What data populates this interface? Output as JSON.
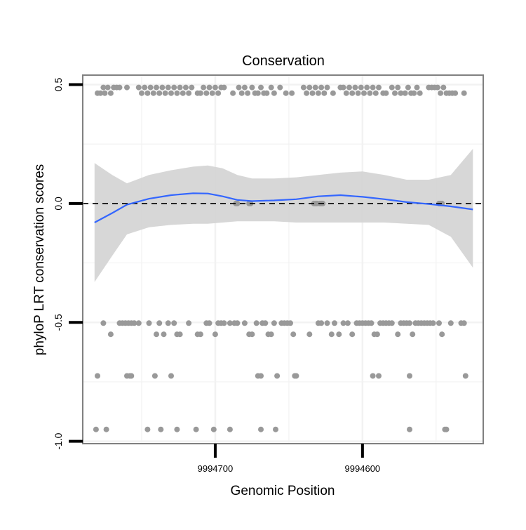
{
  "chart_data": {
    "type": "scatter",
    "title": "Conservation",
    "xlabel": "Genomic Position",
    "ylabel": "phyloP LRT conservation scores",
    "x_reversed": true,
    "xlim": [
      9994790,
      9994518
    ],
    "ylim": [
      -1.01,
      0.54
    ],
    "x_ticks": [
      {
        "value": 9994700,
        "label": "9994700"
      },
      {
        "value": 9994600,
        "label": "9994600"
      }
    ],
    "y_ticks": [
      {
        "value": 0.5,
        "label": "0.5"
      },
      {
        "value": 0.0,
        "label": "0.0"
      },
      {
        "value": -0.5,
        "label": "-0.5"
      },
      {
        "value": -1.0,
        "label": "-1.0"
      }
    ],
    "reference_line": {
      "y": 0,
      "style": "dashed"
    },
    "grid": true,
    "colors": {
      "points": "#999999",
      "smooth_line": "#3366ff",
      "band": "#d3d3d3",
      "border": "#808080",
      "grid": "#f2f2f2",
      "ref_line": "#000000"
    },
    "points": [
      {
        "x": 9994780,
        "y": 0.464
      },
      {
        "x": 9994778,
        "y": 0.464
      },
      {
        "x": 9994776,
        "y": 0.488
      },
      {
        "x": 9994775,
        "y": 0.464
      },
      {
        "x": 9994773,
        "y": 0.488
      },
      {
        "x": 9994771,
        "y": 0.464
      },
      {
        "x": 9994769,
        "y": 0.488
      },
      {
        "x": 9994767,
        "y": 0.488
      },
      {
        "x": 9994765,
        "y": 0.488
      },
      {
        "x": 9994760,
        "y": 0.488
      },
      {
        "x": 9994752,
        "y": 0.488
      },
      {
        "x": 9994750,
        "y": 0.464
      },
      {
        "x": 9994748,
        "y": 0.488
      },
      {
        "x": 9994746,
        "y": 0.464
      },
      {
        "x": 9994744,
        "y": 0.488
      },
      {
        "x": 9994742,
        "y": 0.464
      },
      {
        "x": 9994740,
        "y": 0.488
      },
      {
        "x": 9994738,
        "y": 0.464
      },
      {
        "x": 9994736,
        "y": 0.488
      },
      {
        "x": 9994734,
        "y": 0.464
      },
      {
        "x": 9994732,
        "y": 0.488
      },
      {
        "x": 9994730,
        "y": 0.464
      },
      {
        "x": 9994728,
        "y": 0.488
      },
      {
        "x": 9994726,
        "y": 0.464
      },
      {
        "x": 9994724,
        "y": 0.488
      },
      {
        "x": 9994722,
        "y": 0.464
      },
      {
        "x": 9994720,
        "y": 0.488
      },
      {
        "x": 9994718,
        "y": 0.464
      },
      {
        "x": 9994716,
        "y": 0.488
      },
      {
        "x": 9994712,
        "y": 0.464
      },
      {
        "x": 9994710,
        "y": 0.464
      },
      {
        "x": 9994708,
        "y": 0.488
      },
      {
        "x": 9994706,
        "y": 0.464
      },
      {
        "x": 9994704,
        "y": 0.488
      },
      {
        "x": 9994702,
        "y": 0.464
      },
      {
        "x": 9994700,
        "y": 0.488
      },
      {
        "x": 9994698,
        "y": 0.464
      },
      {
        "x": 9994696,
        "y": 0.488
      },
      {
        "x": 9994694,
        "y": 0.488
      },
      {
        "x": 9994688,
        "y": 0.464
      },
      {
        "x": 9994684,
        "y": 0.488
      },
      {
        "x": 9994682,
        "y": 0.464
      },
      {
        "x": 9994680,
        "y": 0.488
      },
      {
        "x": 9994678,
        "y": 0.464
      },
      {
        "x": 9994675,
        "y": 0.488
      },
      {
        "x": 9994673,
        "y": 0.464
      },
      {
        "x": 9994671,
        "y": 0.464
      },
      {
        "x": 9994669,
        "y": 0.488
      },
      {
        "x": 9994667,
        "y": 0.464
      },
      {
        "x": 9994665,
        "y": 0.464
      },
      {
        "x": 9994662,
        "y": 0.488
      },
      {
        "x": 9994660,
        "y": 0.464
      },
      {
        "x": 9994656,
        "y": 0.488
      },
      {
        "x": 9994652,
        "y": 0.464
      },
      {
        "x": 9994648,
        "y": 0.464
      },
      {
        "x": 9994640,
        "y": 0.488
      },
      {
        "x": 9994638,
        "y": 0.464
      },
      {
        "x": 9994636,
        "y": 0.488
      },
      {
        "x": 9994634,
        "y": 0.464
      },
      {
        "x": 9994632,
        "y": 0.488
      },
      {
        "x": 9994630,
        "y": 0.464
      },
      {
        "x": 9994628,
        "y": 0.488
      },
      {
        "x": 9994626,
        "y": 0.464
      },
      {
        "x": 9994624,
        "y": 0.488
      },
      {
        "x": 9994620,
        "y": 0.464
      },
      {
        "x": 9994615,
        "y": 0.488
      },
      {
        "x": 9994613,
        "y": 0.488
      },
      {
        "x": 9994611,
        "y": 0.464
      },
      {
        "x": 9994609,
        "y": 0.488
      },
      {
        "x": 9994607,
        "y": 0.464
      },
      {
        "x": 9994605,
        "y": 0.488
      },
      {
        "x": 9994603,
        "y": 0.464
      },
      {
        "x": 9994601,
        "y": 0.488
      },
      {
        "x": 9994599,
        "y": 0.464
      },
      {
        "x": 9994597,
        "y": 0.488
      },
      {
        "x": 9994595,
        "y": 0.464
      },
      {
        "x": 9994593,
        "y": 0.488
      },
      {
        "x": 9994591,
        "y": 0.464
      },
      {
        "x": 9994589,
        "y": 0.488
      },
      {
        "x": 9994586,
        "y": 0.464
      },
      {
        "x": 9994584,
        "y": 0.464
      },
      {
        "x": 9994580,
        "y": 0.488
      },
      {
        "x": 9994578,
        "y": 0.464
      },
      {
        "x": 9994576,
        "y": 0.488
      },
      {
        "x": 9994574,
        "y": 0.464
      },
      {
        "x": 9994571,
        "y": 0.464
      },
      {
        "x": 9994569,
        "y": 0.488
      },
      {
        "x": 9994567,
        "y": 0.464
      },
      {
        "x": 9994565,
        "y": 0.464
      },
      {
        "x": 9994563,
        "y": 0.488
      },
      {
        "x": 9994561,
        "y": 0.464
      },
      {
        "x": 9994555,
        "y": 0.488
      },
      {
        "x": 9994553,
        "y": 0.488
      },
      {
        "x": 9994551,
        "y": 0.488
      },
      {
        "x": 9994549,
        "y": 0.488
      },
      {
        "x": 9994547,
        "y": 0.464
      },
      {
        "x": 9994545,
        "y": 0.488
      },
      {
        "x": 9994543,
        "y": 0.464
      },
      {
        "x": 9994541,
        "y": 0.464
      },
      {
        "x": 9994539,
        "y": 0.464
      },
      {
        "x": 9994537,
        "y": 0.464
      },
      {
        "x": 9994531,
        "y": 0.464
      },
      {
        "x": 9994686,
        "y": 0.0
      },
      {
        "x": 9994685,
        "y": 0.0
      },
      {
        "x": 9994677,
        "y": 0.0
      },
      {
        "x": 9994676,
        "y": 0.0
      },
      {
        "x": 9994633,
        "y": 0.0
      },
      {
        "x": 9994632,
        "y": 0.0
      },
      {
        "x": 9994631,
        "y": 0.0
      },
      {
        "x": 9994629,
        "y": 0.0
      },
      {
        "x": 9994628,
        "y": 0.0
      },
      {
        "x": 9994627,
        "y": 0.0
      },
      {
        "x": 9994548,
        "y": 0.0
      },
      {
        "x": 9994547,
        "y": 0.0
      },
      {
        "x": 9994546,
        "y": 0.0
      },
      {
        "x": 9994776,
        "y": -0.503
      },
      {
        "x": 9994765,
        "y": -0.503
      },
      {
        "x": 9994763,
        "y": -0.503
      },
      {
        "x": 9994761,
        "y": -0.503
      },
      {
        "x": 9994759,
        "y": -0.503
      },
      {
        "x": 9994757,
        "y": -0.503
      },
      {
        "x": 9994755,
        "y": -0.503
      },
      {
        "x": 9994752,
        "y": -0.503
      },
      {
        "x": 9994771,
        "y": -0.55
      },
      {
        "x": 9994745,
        "y": -0.503
      },
      {
        "x": 9994740,
        "y": -0.55
      },
      {
        "x": 9994738,
        "y": -0.503
      },
      {
        "x": 9994735,
        "y": -0.55
      },
      {
        "x": 9994732,
        "y": -0.503
      },
      {
        "x": 9994728,
        "y": -0.503
      },
      {
        "x": 9994726,
        "y": -0.55
      },
      {
        "x": 9994724,
        "y": -0.55
      },
      {
        "x": 9994718,
        "y": -0.503
      },
      {
        "x": 9994712,
        "y": -0.55
      },
      {
        "x": 9994710,
        "y": -0.55
      },
      {
        "x": 9994706,
        "y": -0.503
      },
      {
        "x": 9994704,
        "y": -0.503
      },
      {
        "x": 9994700,
        "y": -0.55
      },
      {
        "x": 9994698,
        "y": -0.503
      },
      {
        "x": 9994696,
        "y": -0.503
      },
      {
        "x": 9994694,
        "y": -0.503
      },
      {
        "x": 9994690,
        "y": -0.503
      },
      {
        "x": 9994687,
        "y": -0.503
      },
      {
        "x": 9994685,
        "y": -0.503
      },
      {
        "x": 9994680,
        "y": -0.503
      },
      {
        "x": 9994677,
        "y": -0.55
      },
      {
        "x": 9994675,
        "y": -0.55
      },
      {
        "x": 9994672,
        "y": -0.503
      },
      {
        "x": 9994668,
        "y": -0.503
      },
      {
        "x": 9994666,
        "y": -0.503
      },
      {
        "x": 9994664,
        "y": -0.55
      },
      {
        "x": 9994662,
        "y": -0.55
      },
      {
        "x": 9994660,
        "y": -0.503
      },
      {
        "x": 9994655,
        "y": -0.503
      },
      {
        "x": 9994653,
        "y": -0.503
      },
      {
        "x": 9994651,
        "y": -0.503
      },
      {
        "x": 9994649,
        "y": -0.503
      },
      {
        "x": 9994647,
        "y": -0.55
      },
      {
        "x": 9994636,
        "y": -0.55
      },
      {
        "x": 9994630,
        "y": -0.503
      },
      {
        "x": 9994628,
        "y": -0.503
      },
      {
        "x": 9994624,
        "y": -0.503
      },
      {
        "x": 9994621,
        "y": -0.55
      },
      {
        "x": 9994619,
        "y": -0.503
      },
      {
        "x": 9994616,
        "y": -0.55
      },
      {
        "x": 9994613,
        "y": -0.503
      },
      {
        "x": 9994610,
        "y": -0.503
      },
      {
        "x": 9994607,
        "y": -0.55
      },
      {
        "x": 9994604,
        "y": -0.503
      },
      {
        "x": 9994602,
        "y": -0.503
      },
      {
        "x": 9994600,
        "y": -0.503
      },
      {
        "x": 9994598,
        "y": -0.503
      },
      {
        "x": 9994596,
        "y": -0.503
      },
      {
        "x": 9994594,
        "y": -0.503
      },
      {
        "x": 9994592,
        "y": -0.55
      },
      {
        "x": 9994590,
        "y": -0.55
      },
      {
        "x": 9994588,
        "y": -0.503
      },
      {
        "x": 9994586,
        "y": -0.503
      },
      {
        "x": 9994584,
        "y": -0.503
      },
      {
        "x": 9994582,
        "y": -0.503
      },
      {
        "x": 9994580,
        "y": -0.503
      },
      {
        "x": 9994576,
        "y": -0.55
      },
      {
        "x": 9994574,
        "y": -0.503
      },
      {
        "x": 9994572,
        "y": -0.503
      },
      {
        "x": 9994570,
        "y": -0.503
      },
      {
        "x": 9994568,
        "y": -0.503
      },
      {
        "x": 9994566,
        "y": -0.55
      },
      {
        "x": 9994564,
        "y": -0.503
      },
      {
        "x": 9994562,
        "y": -0.503
      },
      {
        "x": 9994560,
        "y": -0.503
      },
      {
        "x": 9994558,
        "y": -0.503
      },
      {
        "x": 9994556,
        "y": -0.503
      },
      {
        "x": 9994554,
        "y": -0.503
      },
      {
        "x": 9994552,
        "y": -0.503
      },
      {
        "x": 9994548,
        "y": -0.503
      },
      {
        "x": 9994546,
        "y": -0.55
      },
      {
        "x": 9994540,
        "y": -0.503
      },
      {
        "x": 9994533,
        "y": -0.503
      },
      {
        "x": 9994531,
        "y": -0.503
      },
      {
        "x": 9994780,
        "y": -0.725
      },
      {
        "x": 9994760,
        "y": -0.725
      },
      {
        "x": 9994758,
        "y": -0.725
      },
      {
        "x": 9994757,
        "y": -0.725
      },
      {
        "x": 9994741,
        "y": -0.725
      },
      {
        "x": 9994730,
        "y": -0.725
      },
      {
        "x": 9994671,
        "y": -0.725
      },
      {
        "x": 9994669,
        "y": -0.725
      },
      {
        "x": 9994658,
        "y": -0.725
      },
      {
        "x": 9994646,
        "y": -0.725
      },
      {
        "x": 9994645,
        "y": -0.725
      },
      {
        "x": 9994593,
        "y": -0.725
      },
      {
        "x": 9994589,
        "y": -0.725
      },
      {
        "x": 9994568,
        "y": -0.725
      },
      {
        "x": 9994530,
        "y": -0.725
      },
      {
        "x": 9994781,
        "y": -0.95
      },
      {
        "x": 9994774,
        "y": -0.95
      },
      {
        "x": 9994746,
        "y": -0.95
      },
      {
        "x": 9994737,
        "y": -0.95
      },
      {
        "x": 9994726,
        "y": -0.95
      },
      {
        "x": 9994713,
        "y": -0.95
      },
      {
        "x": 9994701,
        "y": -0.95
      },
      {
        "x": 9994690,
        "y": -0.95
      },
      {
        "x": 9994669,
        "y": -0.95
      },
      {
        "x": 9994659,
        "y": -0.95
      },
      {
        "x": 9994568,
        "y": -0.95
      },
      {
        "x": 9994544,
        "y": -0.95
      },
      {
        "x": 9994543,
        "y": -0.95
      }
    ],
    "smooth": {
      "x": [
        9994782,
        9994770,
        9994760,
        9994745,
        9994730,
        9994715,
        9994705,
        9994695,
        9994685,
        9994675,
        9994660,
        9994645,
        9994630,
        9994615,
        9994600,
        9994585,
        9994570,
        9994555,
        9994540,
        9994525
      ],
      "y": [
        -0.08,
        -0.04,
        -0.005,
        0.02,
        0.035,
        0.043,
        0.042,
        0.03,
        0.015,
        0.01,
        0.013,
        0.018,
        0.03,
        0.035,
        0.028,
        0.018,
        0.006,
        -0.002,
        -0.012,
        -0.025
      ],
      "lo": [
        -0.33,
        -0.22,
        -0.13,
        -0.1,
        -0.09,
        -0.085,
        -0.085,
        -0.08,
        -0.075,
        -0.075,
        -0.075,
        -0.08,
        -0.08,
        -0.08,
        -0.08,
        -0.08,
        -0.085,
        -0.09,
        -0.14,
        -0.27
      ],
      "hi": [
        0.17,
        0.12,
        0.085,
        0.12,
        0.14,
        0.155,
        0.16,
        0.148,
        0.12,
        0.105,
        0.105,
        0.11,
        0.12,
        0.13,
        0.135,
        0.12,
        0.1,
        0.1,
        0.12,
        0.23
      ]
    }
  }
}
